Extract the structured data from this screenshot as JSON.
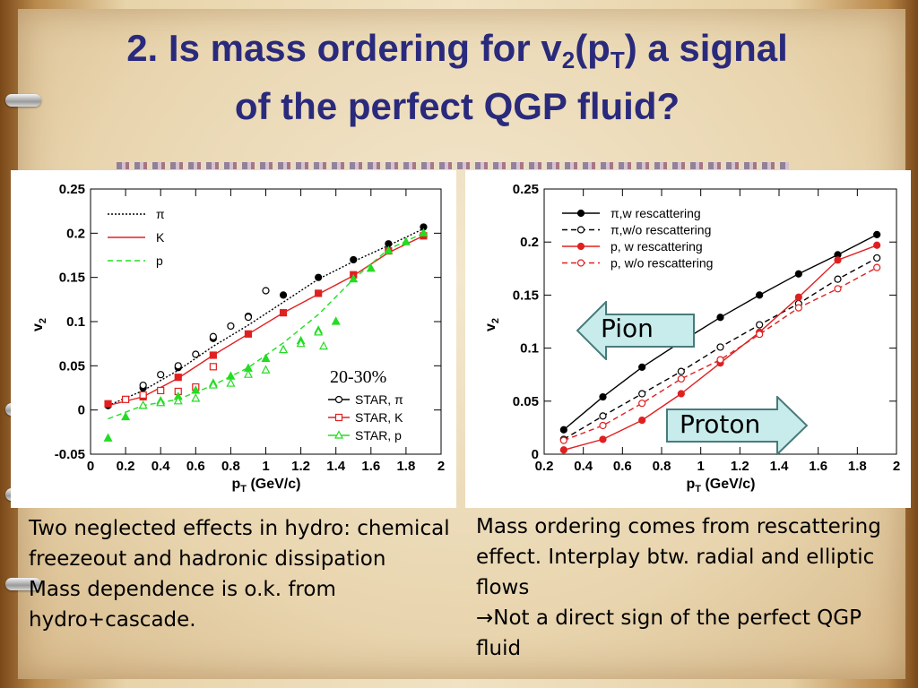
{
  "slide": {
    "title_pre": "2. Is mass ordering for v",
    "title_sub1": "2",
    "title_mid": "(p",
    "title_sub2": "T",
    "title_post": ") a signal",
    "title_line2": "of the perfect QGP fluid?"
  },
  "left_text": [
    "Two neglected effects in hydro: chemical freezeout and hadronic dissipation",
    "Mass dependence is o.k. from hydro+cascade."
  ],
  "right_text": [
    "Mass ordering comes from rescattering effect. Interplay btw. radial and elliptic flows",
    "→Not a direct sign of the perfect QGP fluid"
  ],
  "annotations": {
    "pion": "Pion",
    "proton": "Proton",
    "centrality": "20-30%"
  },
  "colors": {
    "title": "#2a2a7c",
    "red": "#e02020",
    "green": "#22dd22",
    "black": "#000000",
    "arrow_fill": "#c8ecec",
    "arrow_stroke": "#4a7a7a"
  },
  "chart_data": [
    {
      "type": "scatter",
      "xlabel_main": "p",
      "xlabel_sub": "T",
      "xlabel_unit": " (GeV/c)",
      "ylabel_main": "v",
      "ylabel_sub": "2",
      "xlim": [
        0,
        2
      ],
      "ylim": [
        -0.05,
        0.25
      ],
      "xticks": [
        "0",
        "0.2",
        "0.4",
        "0.6",
        "0.8",
        "1",
        "1.2",
        "1.4",
        "1.6",
        "1.8",
        "2"
      ],
      "xtick_values": [
        0,
        0.2,
        0.4,
        0.6,
        0.8,
        1,
        1.2,
        1.4,
        1.6,
        1.8,
        2
      ],
      "yticks": [
        "-0.05",
        "0",
        "0.05",
        "0.1",
        "0.15",
        "0.2",
        "0.25"
      ],
      "ytick_values": [
        -0.05,
        0,
        0.05,
        0.1,
        0.15,
        0.2,
        0.25
      ],
      "hydro_legend": [
        "π",
        "K",
        "p"
      ],
      "star_legend": [
        "STAR, π",
        "STAR, K",
        "STAR, p"
      ],
      "curves": [
        {
          "name": "π",
          "color": "#000000",
          "style": "dotted",
          "x": [
            0.1,
            0.3,
            0.5,
            0.7,
            0.9,
            1.1,
            1.3,
            1.5,
            1.7,
            1.9
          ],
          "y": [
            0.005,
            0.022,
            0.045,
            0.072,
            0.096,
            0.122,
            0.148,
            0.168,
            0.186,
            0.205
          ]
        },
        {
          "name": "K",
          "color": "#e02020",
          "style": "solid",
          "x": [
            0.1,
            0.3,
            0.5,
            0.7,
            0.9,
            1.1,
            1.3,
            1.5,
            1.7,
            1.9
          ],
          "y": [
            0.005,
            0.015,
            0.036,
            0.062,
            0.086,
            0.11,
            0.131,
            0.152,
            0.178,
            0.197
          ]
        },
        {
          "name": "p",
          "color": "#22dd22",
          "style": "dashed",
          "x": [
            0.1,
            0.3,
            0.5,
            0.7,
            0.9,
            1.1,
            1.3,
            1.5,
            1.7,
            1.9
          ],
          "y": [
            -0.01,
            0.005,
            0.012,
            0.028,
            0.048,
            0.076,
            0.108,
            0.148,
            0.182,
            0.2
          ]
        }
      ],
      "points": [
        {
          "series": "STAR, π",
          "color": "#000000",
          "marker": "circle",
          "x": [
            0.1,
            0.3,
            0.5,
            0.7,
            0.9,
            1.1,
            1.3,
            1.5,
            1.7,
            1.9
          ],
          "y": [
            0.005,
            0.025,
            0.048,
            0.081,
            0.106,
            0.13,
            0.15,
            0.17,
            0.188,
            0.207
          ]
        },
        {
          "series": "STAR, π",
          "color": "#000000",
          "marker": "circle-open",
          "x": [
            0.3,
            0.4,
            0.5,
            0.6,
            0.7,
            0.8,
            0.9,
            1.0
          ],
          "y": [
            0.028,
            0.04,
            0.05,
            0.063,
            0.083,
            0.095,
            0.105,
            0.135
          ]
        },
        {
          "series": "STAR, K",
          "color": "#e02020",
          "marker": "square",
          "x": [
            0.1,
            0.3,
            0.5,
            0.7,
            0.9,
            1.1,
            1.3,
            1.5,
            1.7,
            1.9
          ],
          "y": [
            0.007,
            0.015,
            0.037,
            0.062,
            0.086,
            0.11,
            0.132,
            0.153,
            0.18,
            0.197
          ]
        },
        {
          "series": "STAR, K",
          "color": "#e02020",
          "marker": "square-open",
          "x": [
            0.2,
            0.3,
            0.4,
            0.5,
            0.6,
            0.7
          ],
          "y": [
            0.012,
            0.017,
            0.022,
            0.021,
            0.026,
            0.049
          ]
        },
        {
          "series": "STAR, p",
          "color": "#22dd22",
          "marker": "triangle",
          "x": [
            0.1,
            0.2,
            0.3,
            0.4,
            0.5,
            0.6,
            0.7,
            0.8,
            0.9,
            1.0,
            1.1,
            1.2,
            1.3,
            1.4,
            1.5,
            1.6,
            1.7,
            1.8,
            1.9
          ],
          "y": [
            -0.032,
            -0.008,
            0.005,
            0.01,
            0.015,
            0.022,
            0.03,
            0.038,
            0.047,
            0.058,
            0.068,
            0.078,
            0.09,
            0.1,
            0.148,
            0.16,
            0.18,
            0.19,
            0.2
          ]
        },
        {
          "series": "STAR, p",
          "color": "#22dd22",
          "marker": "triangle-open",
          "x": [
            0.3,
            0.4,
            0.5,
            0.6,
            0.7,
            0.8,
            0.9,
            1.0,
            1.1,
            1.2,
            1.3,
            1.33
          ],
          "y": [
            0.005,
            0.008,
            0.01,
            0.013,
            0.028,
            0.03,
            0.04,
            0.045,
            0.068,
            0.075,
            0.088,
            0.072
          ]
        }
      ]
    },
    {
      "type": "line",
      "xlabel_main": "p",
      "xlabel_sub": "T",
      "xlabel_unit": " (GeV/c)",
      "ylabel_main": "v",
      "ylabel_sub": "2",
      "xlim": [
        0.2,
        2
      ],
      "ylim": [
        0,
        0.25
      ],
      "xticks": [
        "0.2",
        "0.4",
        "0.6",
        "0.8",
        "1",
        "1.2",
        "1.4",
        "1.6",
        "1.8",
        "2"
      ],
      "xtick_values": [
        0.2,
        0.4,
        0.6,
        0.8,
        1,
        1.2,
        1.4,
        1.6,
        1.8,
        2
      ],
      "yticks": [
        "0",
        "0.05",
        "0.1",
        "0.15",
        "0.2",
        "0.25"
      ],
      "ytick_values": [
        0,
        0.05,
        0.1,
        0.15,
        0.2,
        0.25
      ],
      "series": [
        {
          "name": "π,w rescattering",
          "color": "#000000",
          "style": "solid",
          "marker": "filled",
          "x": [
            0.3,
            0.5,
            0.7,
            0.9,
            1.1,
            1.3,
            1.5,
            1.7,
            1.9
          ],
          "y": [
            0.023,
            0.054,
            0.082,
            0.106,
            0.129,
            0.15,
            0.17,
            0.188,
            0.207
          ]
        },
        {
          "name": "π,w/o rescattering",
          "color": "#000000",
          "style": "dashed",
          "marker": "open",
          "x": [
            0.3,
            0.5,
            0.7,
            0.9,
            1.1,
            1.3,
            1.5,
            1.7,
            1.9
          ],
          "y": [
            0.014,
            0.036,
            0.057,
            0.078,
            0.101,
            0.122,
            0.142,
            0.165,
            0.185
          ]
        },
        {
          "name": "p, w rescattering",
          "color": "#e02020",
          "style": "solid",
          "marker": "filled",
          "x": [
            0.3,
            0.5,
            0.7,
            0.9,
            1.1,
            1.3,
            1.5,
            1.7,
            1.9
          ],
          "y": [
            0.004,
            0.014,
            0.032,
            0.057,
            0.086,
            0.115,
            0.148,
            0.183,
            0.197
          ]
        },
        {
          "name": "p, w/o rescattering",
          "color": "#e02020",
          "style": "dashed",
          "marker": "open",
          "x": [
            0.3,
            0.5,
            0.7,
            0.9,
            1.1,
            1.3,
            1.5,
            1.7,
            1.9
          ],
          "y": [
            0.013,
            0.027,
            0.048,
            0.071,
            0.089,
            0.113,
            0.138,
            0.156,
            0.176
          ]
        }
      ]
    }
  ]
}
